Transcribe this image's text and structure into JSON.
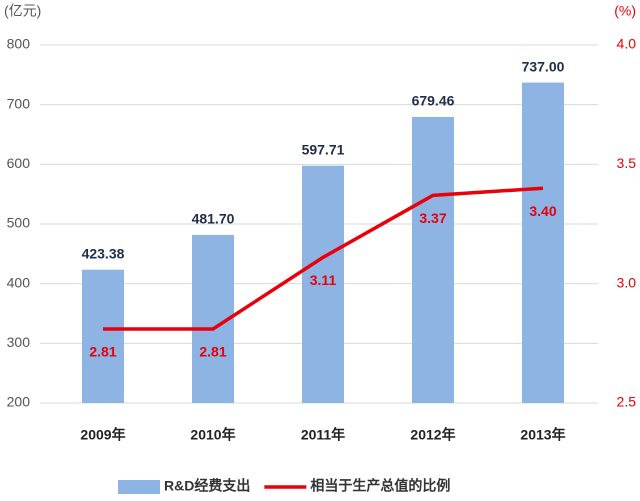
{
  "chart_data": {
    "type": "bar",
    "y_label": "(亿元)",
    "y2_label": "(%)",
    "categories": [
      "2009年",
      "2010年",
      "2011年",
      "2012年",
      "2013年"
    ],
    "series": [
      {
        "name": "R&D经费支出",
        "type": "bar",
        "axis": "y",
        "color": "#8db4e2",
        "values": [
          423.38,
          481.7,
          597.71,
          679.46,
          737.0
        ],
        "value_labels": [
          "423.38",
          "481.70",
          "597.71",
          "679.46",
          "737.00"
        ]
      },
      {
        "name": "相当于生产总值的比例",
        "type": "line",
        "axis": "y2",
        "color": "#e8000b",
        "values": [
          2.81,
          2.81,
          3.11,
          3.37,
          3.4
        ],
        "value_labels": [
          "2.81",
          "2.81",
          "3.11",
          "3.37",
          "3.40"
        ]
      }
    ],
    "ylim": [
      200,
      800
    ],
    "yticks": [
      200,
      300,
      400,
      500,
      600,
      700,
      800
    ],
    "y2lim": [
      2.5,
      4.0
    ],
    "y2ticks": [
      2.5,
      {
        "value": 3.0,
        "label": "3.0"
      },
      3.5,
      {
        "value": 4.0,
        "label": "4.0"
      }
    ],
    "grid": true
  }
}
